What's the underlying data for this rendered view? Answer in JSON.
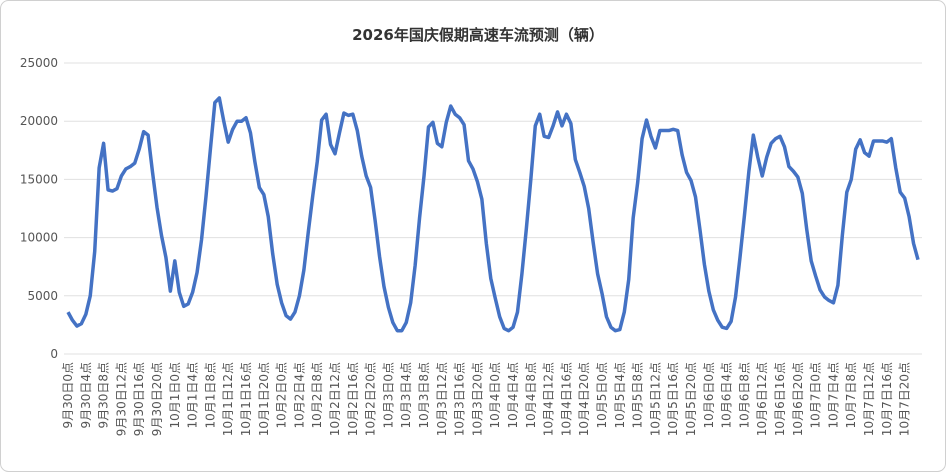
{
  "chart_data": {
    "type": "line",
    "title": "2026年国庆假期高速车流预测（辆）",
    "categories": [
      "9月30日0点",
      null,
      null,
      null,
      "9月30日4点",
      null,
      null,
      null,
      "9月30日8点",
      null,
      null,
      null,
      "9月30日12点",
      null,
      null,
      null,
      "9月30日16点",
      null,
      null,
      null,
      "9月30日20点",
      null,
      null,
      null,
      "10月1日0点",
      null,
      null,
      null,
      "10月1日4点",
      null,
      null,
      null,
      "10月1日8点",
      null,
      null,
      null,
      "10月1日12点",
      null,
      null,
      null,
      "10月1日16点",
      null,
      null,
      null,
      "10月1日20点",
      null,
      null,
      null,
      "10月2日0点",
      null,
      null,
      null,
      "10月2日4点",
      null,
      null,
      null,
      "10月2日8点",
      null,
      null,
      null,
      "10月2日12点",
      null,
      null,
      null,
      "10月2日16点",
      null,
      null,
      null,
      "10月2日20点",
      null,
      null,
      null,
      "10月3日0点",
      null,
      null,
      null,
      "10月3日4点",
      null,
      null,
      null,
      "10月3日8点",
      null,
      null,
      null,
      "10月3日12点",
      null,
      null,
      null,
      "10月3日16点",
      null,
      null,
      null,
      "10月3日20点",
      null,
      null,
      null,
      "10月4日0点",
      null,
      null,
      null,
      "10月4日4点",
      null,
      null,
      null,
      "10月4日8点",
      null,
      null,
      null,
      "10月4日12点",
      null,
      null,
      null,
      "10月4日16点",
      null,
      null,
      null,
      "10月4日20点",
      null,
      null,
      null,
      "10月5日0点",
      null,
      null,
      null,
      "10月5日4点",
      null,
      null,
      null,
      "10月5日8点",
      null,
      null,
      null,
      "10月5日12点",
      null,
      null,
      null,
      "10月5日16点",
      null,
      null,
      null,
      "10月5日20点",
      null,
      null,
      null,
      "10月6日0点",
      null,
      null,
      null,
      "10月6日4点",
      null,
      null,
      null,
      "10月6日8点",
      null,
      null,
      null,
      "10月6日12点",
      null,
      null,
      null,
      "10月6日16点",
      null,
      null,
      null,
      "10月6日20点",
      null,
      null,
      null,
      "10月7日0点",
      null,
      null,
      null,
      "10月7日4点",
      null,
      null,
      null,
      "10月7日8点",
      null,
      null,
      null,
      "10月7日12点",
      null,
      null,
      null,
      "10月7日16点",
      null,
      null,
      null,
      "10月7日20点",
      null,
      null,
      null
    ],
    "series": [
      {
        "name": "车流",
        "color": "#4472c4",
        "values": [
          3600,
          2900,
          2400,
          2600,
          3400,
          5000,
          8800,
          16000,
          18100,
          14100,
          14000,
          14200,
          15300,
          15900,
          16100,
          16400,
          17600,
          19100,
          18800,
          15600,
          12600,
          10200,
          8300,
          5400,
          8000,
          5300,
          4100,
          4300,
          5300,
          7000,
          9800,
          13500,
          17600,
          21600,
          22000,
          20000,
          18200,
          19300,
          20000,
          20000,
          20300,
          19000,
          16500,
          14300,
          13700,
          11800,
          8600,
          6000,
          4400,
          3300,
          3000,
          3600,
          5000,
          7200,
          10500,
          13600,
          16500,
          20100,
          20600,
          18000,
          17200,
          19000,
          20700,
          20500,
          20600,
          19200,
          17000,
          15300,
          14300,
          11500,
          8400,
          5800,
          4000,
          2700,
          2000,
          2000,
          2700,
          4400,
          7600,
          11700,
          15300,
          19500,
          19900,
          18100,
          17800,
          19900,
          21300,
          20600,
          20300,
          19700,
          16600,
          15900,
          14800,
          13300,
          9500,
          6500,
          4800,
          3200,
          2200,
          2000,
          2300,
          3600,
          6900,
          10800,
          15000,
          19600,
          20600,
          18700,
          18600,
          19600,
          20800,
          19600,
          20600,
          19800,
          16700,
          15600,
          14400,
          12500,
          9600,
          6900,
          5200,
          3200,
          2300,
          2000,
          2100,
          3600,
          6400,
          11700,
          14700,
          18500,
          20100,
          18700,
          17700,
          19200,
          19200,
          19200,
          19300,
          19200,
          17100,
          15600,
          14900,
          13500,
          10700,
          7700,
          5400,
          3800,
          2900,
          2300,
          2200,
          2800,
          4900,
          8300,
          11900,
          15700,
          18800,
          16900,
          15300,
          16900,
          18100,
          18500,
          18700,
          17800,
          16100,
          15700,
          15200,
          13800,
          10700,
          8000,
          6700,
          5500,
          4900,
          4600,
          4400,
          5900,
          10200,
          13900,
          15000,
          17600,
          18400,
          17300,
          17000,
          18300,
          18300,
          18300,
          18200,
          18500,
          16000,
          13900,
          13400,
          11800,
          9500,
          8100
        ]
      }
    ],
    "ylim": [
      0,
      25000
    ],
    "yticks": [
      0,
      5000,
      10000,
      15000,
      20000,
      25000
    ],
    "grid": true
  }
}
